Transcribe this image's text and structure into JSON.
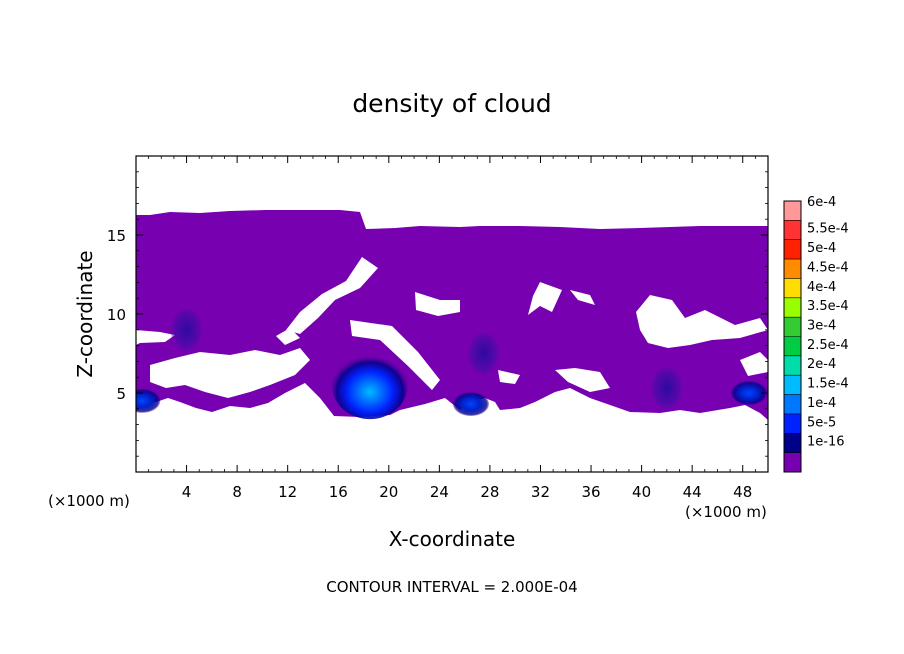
{
  "chart_data": {
    "type": "heatmap",
    "title": "density of cloud",
    "xlabel": "X-coordinate",
    "ylabel": "Z-coordinate",
    "x_unit": "(×1000 m)",
    "x_unit_right": "(×1000 m)",
    "xlim": [
      0,
      50
    ],
    "ylim": [
      0,
      20
    ],
    "x_ticks": [
      4,
      8,
      12,
      16,
      20,
      24,
      28,
      32,
      36,
      40,
      44,
      48
    ],
    "y_ticks": [
      5,
      10,
      15
    ],
    "footer": "CONTOUR INTERVAL = 2.000E-04",
    "colorbar": {
      "labels": [
        "6e-4",
        "5.5e-4",
        "5e-4",
        "4.5e-4",
        "4e-4",
        "3.5e-4",
        "3e-4",
        "2.5e-4",
        "2e-4",
        "1.5e-4",
        "1e-4",
        "5e-5",
        "1e-16"
      ],
      "colors": [
        "#ff9999",
        "#ff3333",
        "#ff2200",
        "#ff8c00",
        "#ffdd00",
        "#99ff00",
        "#33cc33",
        "#00cc44",
        "#00ddaa",
        "#00bbff",
        "#0077ff",
        "#0022ff",
        "#000088",
        "#7700b0"
      ]
    },
    "cloud_band_z": [
      3.5,
      16
    ],
    "fill_color": "#7700b0",
    "cores": [
      {
        "x": 18.5,
        "z": 5.5,
        "level": "1.5e-4"
      },
      {
        "x": 27.5,
        "z": 7.5,
        "level": "5e-5"
      },
      {
        "x": 26.5,
        "z": 4.3,
        "level": "1e-4"
      },
      {
        "x": 42.0,
        "z": 5.3,
        "level": "5e-5"
      },
      {
        "x": 48.5,
        "z": 5.0,
        "level": "1e-4"
      },
      {
        "x": 0.5,
        "z": 4.5,
        "level": "1e-4"
      },
      {
        "x": 4.0,
        "z": 9.0,
        "level": "5e-5"
      }
    ]
  }
}
